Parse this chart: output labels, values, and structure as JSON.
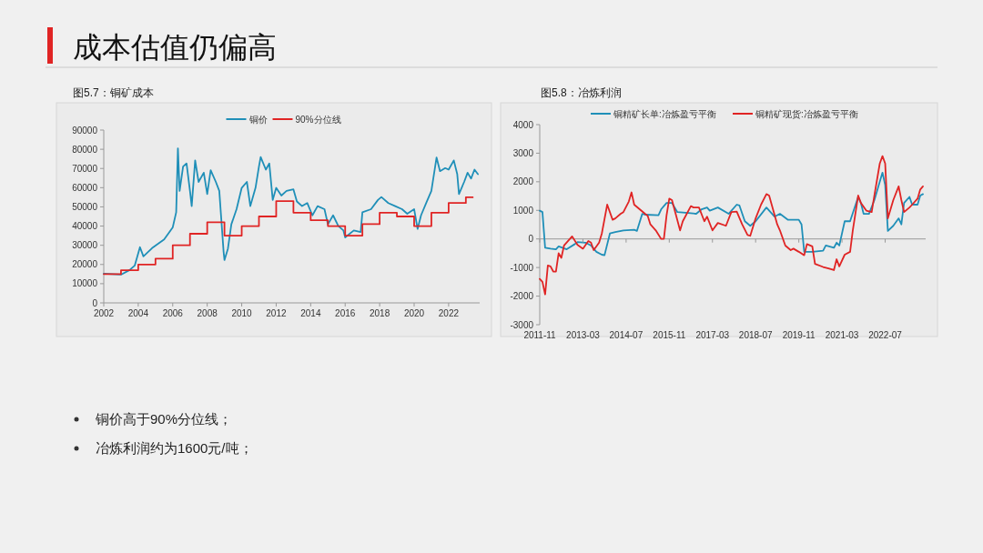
{
  "chart_data": [
    {
      "type": "other",
      "title": "成本估值仍偏高",
      "annotations": [
        "铜价高于90%分位线；",
        "冶炼利润约为1600元/吨；"
      ]
    },
    {
      "type": "line",
      "title": "图5.7：铜矿成本",
      "legend": "top",
      "xlim": [
        2002,
        2023.8
      ],
      "xticks": [
        2002,
        2004,
        2006,
        2008,
        2010,
        2012,
        2014,
        2016,
        2018,
        2020,
        2022
      ],
      "ylim": [
        0,
        90000
      ],
      "yticks": [
        0,
        10000,
        20000,
        30000,
        40000,
        50000,
        60000,
        70000,
        80000,
        90000
      ],
      "series": [
        {
          "name": "铜价",
          "color": "#1f8fb8",
          "x": [
            2002.0,
            2003.0,
            2003.5,
            2003.8,
            2004.1,
            2004.3,
            2004.8,
            2005.5,
            2006.0,
            2006.2,
            2006.3,
            2006.4,
            2006.6,
            2006.8,
            2007.0,
            2007.1,
            2007.3,
            2007.5,
            2007.8,
            2008.0,
            2008.2,
            2008.5,
            2008.7,
            2008.8,
            2008.95,
            2009.0,
            2009.2,
            2009.4,
            2009.7,
            2010.0,
            2010.3,
            2010.5,
            2010.8,
            2011.0,
            2011.1,
            2011.4,
            2011.6,
            2011.8,
            2012.0,
            2012.3,
            2012.6,
            2013.0,
            2013.2,
            2013.5,
            2013.8,
            2014.1,
            2014.4,
            2014.8,
            2015.0,
            2015.3,
            2015.6,
            2015.9,
            2016.0,
            2016.5,
            2016.9,
            2017.0,
            2017.5,
            2017.9,
            2018.1,
            2018.5,
            2018.9,
            2019.3,
            2019.6,
            2020.0,
            2020.2,
            2020.4,
            2020.7,
            2021.0,
            2021.3,
            2021.5,
            2021.8,
            2022.0,
            2022.3,
            2022.5,
            2022.6,
            2022.9,
            2023.1,
            2023.3,
            2023.5,
            2023.7
          ],
          "values": [
            15200,
            14700,
            17100,
            19500,
            29000,
            24200,
            28500,
            33000,
            39300,
            47200,
            80500,
            58300,
            71000,
            72600,
            58300,
            50400,
            74200,
            63000,
            67800,
            56700,
            69100,
            63000,
            58300,
            45600,
            26600,
            22300,
            28200,
            40900,
            48800,
            59900,
            63000,
            50400,
            59900,
            71000,
            76000,
            69400,
            72600,
            53600,
            59900,
            55900,
            58300,
            59100,
            52800,
            50400,
            52000,
            45600,
            50400,
            48800,
            40900,
            45600,
            40100,
            37700,
            34100,
            37700,
            36900,
            47200,
            48800,
            53600,
            55100,
            52000,
            50400,
            48800,
            46400,
            48800,
            38500,
            45600,
            52000,
            58300,
            75700,
            68600,
            70200,
            69400,
            74200,
            67000,
            56700,
            63000,
            67800,
            64700,
            69400,
            67000
          ]
        },
        {
          "name": "90%分位线",
          "type": "step",
          "color": "#e02424",
          "x": [
            2002,
            2003,
            2004,
            2005,
            2006,
            2007,
            2008,
            2009,
            2010,
            2011,
            2012,
            2013,
            2014,
            2015,
            2016,
            2017,
            2018,
            2019,
            2020,
            2021,
            2022,
            2023,
            2023.4
          ],
          "values": [
            15000,
            17000,
            20000,
            23000,
            30000,
            36000,
            42000,
            35000,
            40000,
            45000,
            53000,
            47000,
            43000,
            40000,
            35000,
            41000,
            47000,
            45000,
            40000,
            47000,
            52000,
            55000,
            55000
          ]
        }
      ]
    },
    {
      "type": "line",
      "title": "图5.8：冶炼利润",
      "legend": "top",
      "xlim": [
        "2011-11",
        "2023-10"
      ],
      "xticks": [
        "2011-11",
        "2013-03",
        "2014-07",
        "2015-11",
        "2017-03",
        "2018-07",
        "2019-11",
        "2021-03",
        "2022-07"
      ],
      "ylim": [
        -3000,
        4000
      ],
      "yticks": [
        -3000,
        -2000,
        -1000,
        0,
        1000,
        2000,
        3000,
        4000
      ],
      "series": [
        {
          "name": "铜精矿长单:冶炼盈亏平衡",
          "color": "#1f8fb8",
          "x": [
            "2011-11",
            "2011-12",
            "2012-01",
            "2012-03",
            "2012-05",
            "2012-06",
            "2012-09",
            "2012-12",
            "2013-01",
            "2013-04",
            "2013-06",
            "2013-08",
            "2013-10",
            "2013-11",
            "2014-01",
            "2014-03",
            "2014-06",
            "2014-10",
            "2014-11",
            "2015-01",
            "2015-02",
            "2015-07",
            "2015-08",
            "2015-10",
            "2015-12",
            "2016-02",
            "2016-06",
            "2016-09",
            "2016-11",
            "2017-01",
            "2017-02",
            "2017-05",
            "2017-09",
            "2017-12",
            "2018-01",
            "2018-03",
            "2018-05",
            "2018-07",
            "2018-11",
            "2019-02",
            "2019-04",
            "2019-07",
            "2019-11",
            "2019-12",
            "2020-01",
            "2020-04",
            "2020-08",
            "2020-09",
            "2020-12",
            "2021-01",
            "2021-02",
            "2021-04",
            "2021-06",
            "2021-09",
            "2021-10",
            "2021-11",
            "2022-01",
            "2022-03",
            "2022-05",
            "2022-06",
            "2022-07",
            "2022-08",
            "2022-10",
            "2022-12",
            "2023-01",
            "2023-02",
            "2023-04",
            "2023-05",
            "2023-07",
            "2023-08",
            "2023-09"
          ],
          "values": [
            990,
            940,
            -310,
            -340,
            -360,
            -260,
            -360,
            -180,
            -110,
            -130,
            -230,
            -450,
            -550,
            -570,
            190,
            240,
            300,
            320,
            280,
            880,
            850,
            830,
            1040,
            1260,
            1260,
            940,
            910,
            880,
            1040,
            1100,
            990,
            1100,
            880,
            1200,
            1170,
            620,
            460,
            620,
            1100,
            780,
            880,
            670,
            670,
            510,
            -450,
            -450,
            -410,
            -230,
            -310,
            -130,
            -230,
            620,
            620,
            1470,
            1260,
            880,
            880,
            1360,
            2000,
            2320,
            1890,
            280,
            460,
            720,
            510,
            1260,
            1470,
            1200,
            1200,
            1520,
            1570
          ]
        },
        {
          "name": "铜精矿现货:冶炼盈亏平衡",
          "color": "#e02424",
          "x": [
            "2011-11",
            "2011-12",
            "2012-01",
            "2012-02",
            "2012-03",
            "2012-04",
            "2012-05",
            "2012-06",
            "2012-07",
            "2012-08",
            "2012-11",
            "2013-01",
            "2013-03",
            "2013-05",
            "2013-06",
            "2013-07",
            "2013-09",
            "2013-10",
            "2013-12",
            "2014-02",
            "2014-03",
            "2014-05",
            "2014-06",
            "2014-08",
            "2014-09",
            "2014-10",
            "2014-12",
            "2015-02",
            "2015-03",
            "2015-04",
            "2015-06",
            "2015-08",
            "2015-09",
            "2015-10",
            "2015-11",
            "2015-12",
            "2016-03",
            "2016-04",
            "2016-07",
            "2016-08",
            "2016-10",
            "2016-12",
            "2017-01",
            "2017-03",
            "2017-05",
            "2017-08",
            "2017-10",
            "2017-12",
            "2018-02",
            "2018-04",
            "2018-05",
            "2018-07",
            "2018-09",
            "2018-11",
            "2018-12",
            "2019-03",
            "2019-04",
            "2019-06",
            "2019-08",
            "2019-09",
            "2019-11",
            "2020-01",
            "2020-02",
            "2020-04",
            "2020-05",
            "2020-08",
            "2020-10",
            "2020-12",
            "2021-01",
            "2021-02",
            "2021-04",
            "2021-06",
            "2021-07",
            "2021-09",
            "2021-10",
            "2021-12",
            "2022-02",
            "2022-03",
            "2022-05",
            "2022-06",
            "2022-07",
            "2022-08",
            "2022-10",
            "2022-12",
            "2023-01",
            "2023-02",
            "2023-04",
            "2023-05",
            "2023-07",
            "2023-08",
            "2023-09"
          ],
          "values": [
            -1400,
            -1500,
            -1940,
            -930,
            -960,
            -1140,
            -1140,
            -500,
            -660,
            -230,
            90,
            -210,
            -340,
            -70,
            -130,
            -390,
            -130,
            190,
            1200,
            670,
            720,
            880,
            940,
            1310,
            1630,
            1200,
            1040,
            880,
            810,
            510,
            300,
            0,
            0,
            830,
            1410,
            1360,
            300,
            620,
            1150,
            1100,
            1100,
            620,
            780,
            300,
            560,
            460,
            940,
            960,
            510,
            140,
            110,
            720,
            1200,
            1570,
            1520,
            510,
            300,
            -230,
            -390,
            -340,
            -450,
            -570,
            -180,
            -260,
            -870,
            -980,
            -1030,
            -1090,
            -710,
            -960,
            -550,
            -450,
            300,
            1520,
            1260,
            990,
            940,
            1520,
            2640,
            2900,
            2640,
            720,
            1360,
            1840,
            1360,
            940,
            1100,
            1200,
            1410,
            1730,
            1840
          ]
        }
      ]
    }
  ]
}
